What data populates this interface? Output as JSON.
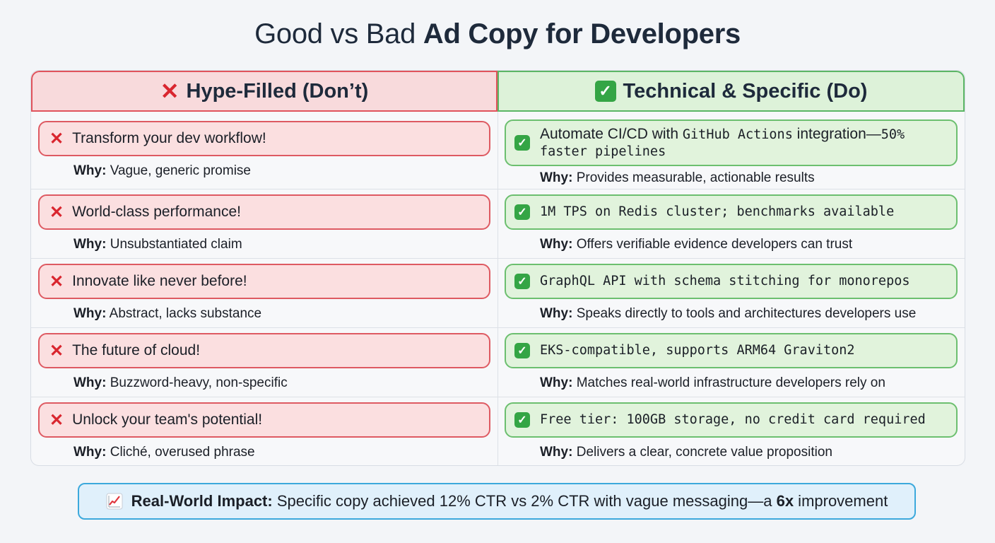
{
  "title": {
    "part1": "Good vs Bad ",
    "part2": "Ad Copy for Developers"
  },
  "headers": {
    "bad": "Hype-Filled (Don’t)",
    "good": "Technical & Specific (Do)"
  },
  "why_label": "Why:",
  "rows": [
    {
      "bad": "Transform your dev workflow!",
      "bad_why": "Vague, generic promise",
      "good_line1_sans_a": "Automate CI/CD with ",
      "good_line1_mono": "GitHub Actions",
      "good_line1_sans_b": " integration—",
      "good_line1_mono_b": "50%",
      "good_line2": "faster pipelines",
      "good_why": "Provides measurable, actionable results"
    },
    {
      "bad": "World-class performance!",
      "bad_why": "Unsubstantiated claim",
      "good": "1M TPS on Redis cluster; benchmarks available",
      "good_why": "Offers verifiable evidence developers can trust"
    },
    {
      "bad": "Innovate like never before!",
      "bad_why": "Abstract, lacks substance",
      "good": "GraphQL API with schema stitching for monorepos",
      "good_why": "Speaks directly to tools and architectures developers use"
    },
    {
      "bad": "The future of cloud!",
      "bad_why": "Buzzword-heavy, non-specific",
      "good": "EKS-compatible, supports ARM64 Graviton2",
      "good_why": "Matches real-world infrastructure developers rely on"
    },
    {
      "bad": "Unlock your team's potential!",
      "bad_why": "Cliché, overused phrase",
      "good": "Free tier: 100GB storage, no credit card required",
      "good_why": "Delivers a clear, concrete value proposition"
    }
  ],
  "impact": {
    "label": "Real-World Impact:",
    "text": " Specific copy achieved 12% CTR vs 2% CTR with vague messaging—a ",
    "highlight": "6x",
    "tail": " improvement"
  },
  "colors": {
    "bad_accent": "#e0535c",
    "good_accent": "#5bb665",
    "impact_accent": "#3ca9dc"
  }
}
